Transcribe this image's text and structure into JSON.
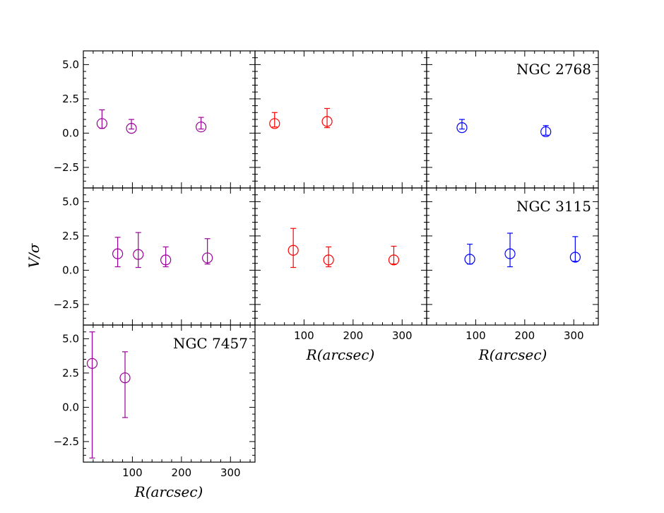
{
  "chart_data": {
    "type": "scatter",
    "ylabel": "V/σ",
    "xlabel": "R(arcsec)",
    "xlim": [
      0,
      350
    ],
    "ylim": [
      -4,
      6
    ],
    "xticks": [
      100,
      200,
      300
    ],
    "yticks": [
      -2.5,
      0.0,
      2.5,
      5.0
    ],
    "ytick_labels": [
      "−2.5",
      "0.0",
      "2.5",
      "5.0"
    ],
    "markers": "open circles with error bars",
    "panels": [
      {
        "row": 0,
        "col": 0,
        "color": "#990099",
        "galaxy": "",
        "x": [
          38,
          98,
          240
        ],
        "y": [
          0.7,
          0.35,
          0.45
        ],
        "err_low": [
          0.35,
          0.3,
          0.3
        ],
        "err_high": [
          1.7,
          1.0,
          1.15
        ]
      },
      {
        "row": 0,
        "col": 1,
        "color": "#ff0000",
        "galaxy": "",
        "x": [
          40,
          147
        ],
        "y": [
          0.7,
          0.85
        ],
        "err_low": [
          0.45,
          0.4
        ],
        "err_high": [
          1.5,
          1.8
        ]
      },
      {
        "row": 0,
        "col": 2,
        "color": "#0000ff",
        "galaxy": "NGC 2768",
        "x": [
          72,
          243
        ],
        "y": [
          0.4,
          0.1
        ],
        "err_low": [
          0.3,
          -0.15
        ],
        "err_high": [
          1.0,
          0.55
        ]
      },
      {
        "row": 1,
        "col": 0,
        "color": "#990099",
        "galaxy": "",
        "x": [
          70,
          112,
          168,
          253
        ],
        "y": [
          1.2,
          1.15,
          0.75,
          0.9
        ],
        "err_low": [
          0.25,
          0.2,
          0.25,
          0.45
        ],
        "err_high": [
          2.4,
          2.75,
          1.7,
          2.3
        ]
      },
      {
        "row": 1,
        "col": 1,
        "color": "#ff0000",
        "galaxy": "",
        "x": [
          78,
          150,
          283
        ],
        "y": [
          1.45,
          0.75,
          0.75
        ],
        "err_low": [
          0.2,
          0.25,
          0.45
        ],
        "err_high": [
          3.05,
          1.7,
          1.75
        ]
      },
      {
        "row": 1,
        "col": 2,
        "color": "#0000ff",
        "galaxy": "NGC 3115",
        "x": [
          88,
          170,
          303
        ],
        "y": [
          0.8,
          1.2,
          0.95
        ],
        "err_low": [
          0.45,
          0.25,
          0.65
        ],
        "err_high": [
          1.9,
          2.7,
          2.45
        ]
      },
      {
        "row": 2,
        "col": 0,
        "color": "#990099",
        "galaxy": "NGC 7457",
        "x": [
          18,
          85
        ],
        "y": [
          3.2,
          2.15
        ],
        "err_low": [
          -3.7,
          -0.75
        ],
        "err_high": [
          5.5,
          4.05
        ]
      }
    ]
  }
}
